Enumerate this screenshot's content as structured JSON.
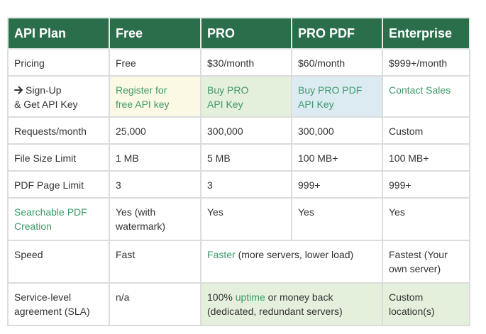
{
  "headers": [
    "API Plan",
    "Free",
    "PRO",
    "PRO PDF",
    "Enterprise"
  ],
  "rows": {
    "pricing": {
      "label": "Pricing",
      "free": "Free",
      "pro": "$30/month",
      "pro_pdf": "$60/month",
      "enterprise": "$999+/month"
    },
    "signup": {
      "label_line1": "Sign-Up",
      "label_line2": "& Get API Key",
      "free_line1": "Register for",
      "free_line2": "free API key",
      "pro_line1": "Buy PRO",
      "pro_line2": "API Key",
      "pro_pdf_line1": "Buy PRO PDF",
      "pro_pdf_line2": "API Key",
      "enterprise": "Contact Sales"
    },
    "requests": {
      "label": "Requests/month",
      "free": "25,000",
      "pro": "300,000",
      "pro_pdf": "300,000",
      "enterprise": "Custom"
    },
    "file_size": {
      "label": "File Size Limit",
      "free": "1 MB",
      "pro": "5 MB",
      "pro_pdf": "100 MB+",
      "enterprise": "100 MB+"
    },
    "pdf_pages": {
      "label": "PDF Page Limit",
      "free": "3",
      "pro": "3",
      "pro_pdf": "999+",
      "enterprise": "999+"
    },
    "searchable": {
      "label_line1": "Searchable PDF",
      "label_line2": "Creation",
      "free_line1": "Yes (with",
      "free_line2": "watermark)",
      "pro": "Yes",
      "pro_pdf": "Yes",
      "enterprise": "Yes"
    },
    "speed": {
      "label": "Speed",
      "free": "Fast",
      "pro_link": "Faster",
      "pro_rest": " (more servers, lower load)",
      "enterprise_line1": "Fastest (Your",
      "enterprise_line2": "own server)"
    },
    "sla": {
      "label_line1": "Service-level",
      "label_line2": "agreement (SLA)",
      "free": "n/a",
      "pro_pre": "100% ",
      "pro_link": "uptime",
      "pro_post": " or money back",
      "pro_line2": "(dedicated, redundant servers)",
      "enterprise_line1": "Custom",
      "enterprise_line2": "location(s)"
    }
  },
  "colors": {
    "header_bg": "#2a6e4b",
    "link": "#3d9a6a",
    "free_signup_bg": "#fbf9e4",
    "pro_bg": "#e4efdc",
    "pro_pdf_bg": "#dcebf2"
  },
  "icons": {
    "signup": "arrow-right-icon"
  }
}
